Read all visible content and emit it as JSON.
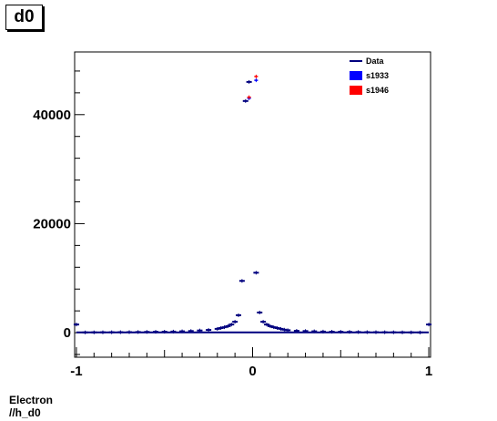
{
  "canvas_title": "d0",
  "footer": {
    "line1": "Electron",
    "line2": "//h_d0"
  },
  "chart_data": {
    "type": "scatter",
    "title": "d0",
    "xlim": [
      -1.01,
      1.01
    ],
    "ylim": [
      -4500,
      51500
    ],
    "x_ticks": [
      -1,
      0,
      1
    ],
    "x_tick_labels": [
      "-1",
      "0",
      "1"
    ],
    "y_ticks": [
      0,
      20000,
      40000
    ],
    "y_tick_labels": [
      "0",
      "20000",
      "40000"
    ],
    "legend": {
      "position": "top-right",
      "entries": [
        {
          "label": "Data",
          "color": "#00007f",
          "style": "line"
        },
        {
          "label": "s1933",
          "color": "#0000ff",
          "style": "box"
        },
        {
          "label": "s1946",
          "color": "#ff0000",
          "style": "box"
        }
      ]
    },
    "series": [
      {
        "name": "Data",
        "color": "#00007f",
        "x": [
          -1.0,
          -0.95,
          -0.9,
          -0.85,
          -0.8,
          -0.75,
          -0.7,
          -0.65,
          -0.6,
          -0.55,
          -0.5,
          -0.45,
          -0.4,
          -0.35,
          -0.3,
          -0.25,
          -0.2,
          -0.18,
          -0.16,
          -0.14,
          -0.12,
          -0.1,
          -0.08,
          -0.06,
          -0.04,
          -0.02,
          0.02,
          0.04,
          0.06,
          0.08,
          0.1,
          0.12,
          0.14,
          0.16,
          0.18,
          0.2,
          0.25,
          0.3,
          0.35,
          0.4,
          0.45,
          0.5,
          0.55,
          0.6,
          0.65,
          0.7,
          0.75,
          0.8,
          0.85,
          0.9,
          0.95,
          1.0
        ],
        "y": [
          1500,
          50,
          60,
          70,
          80,
          90,
          100,
          120,
          140,
          160,
          180,
          200,
          250,
          300,
          400,
          500,
          700,
          850,
          1000,
          1200,
          1500,
          2000,
          3200,
          9500,
          42500,
          46000,
          11000,
          3700,
          2000,
          1500,
          1200,
          1000,
          850,
          700,
          550,
          450,
          350,
          300,
          250,
          200,
          180,
          160,
          140,
          120,
          100,
          90,
          80,
          70,
          60,
          50,
          40,
          1500
        ]
      },
      {
        "name": "s1933",
        "color": "#0000ff",
        "x": [
          -0.02,
          0.02
        ],
        "y": [
          43000,
          46300
        ]
      },
      {
        "name": "s1946",
        "color": "#ff0000",
        "x": [
          -0.02,
          0.02
        ],
        "y": [
          43200,
          47000
        ]
      }
    ]
  }
}
